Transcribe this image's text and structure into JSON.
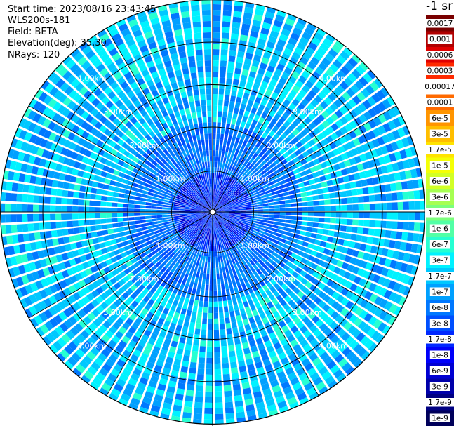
{
  "header": {
    "start_time": "Start time: 2023/08/16 23:43:45",
    "instrument": "WLS200s-181",
    "field": "Field: BETA",
    "elevation": "Elevation(deg): 35.30",
    "nrays": "NRays: 120"
  },
  "colorbar": {
    "unit_label": "-1 sr",
    "labels": [
      "0.0017",
      "0.001",
      "0.0006",
      "0.0003",
      "0.00017",
      "0.0001",
      "6e-5",
      "3e-5",
      "1.7e-5",
      "1e-5",
      "6e-6",
      "3e-6",
      "1.7e-6",
      "1e-6",
      "6e-7",
      "3e-7",
      "1.7e-7",
      "1e-7",
      "6e-8",
      "3e-8",
      "1.7e-8",
      "1e-8",
      "6e-9",
      "3e-9",
      "1.7e-9",
      "1e-9"
    ],
    "colors": [
      "#7a0000",
      "#b00000",
      "#e00000",
      "#ff2a00",
      "#ffffff",
      "#ff6a00",
      "#ff9500",
      "#ffbe00",
      "#ffe400",
      "#f4ff06",
      "#d2ff26",
      "#a6ff52",
      "#7cff7c",
      "#52ffa6",
      "#26ffd2",
      "#00f2ff",
      "#00c8ff",
      "#00a0ff",
      "#0078ff",
      "#0050ff",
      "#0028ff",
      "#0000fa",
      "#0000d2",
      "#0000aa",
      "#000082",
      "#00005a"
    ]
  },
  "chart_data": {
    "type": "heatmap",
    "projection": "polar (PPI)",
    "field": "BETA",
    "elevation_deg": 35.3,
    "n_rays": 120,
    "range_rings_km": [
      1.0,
      2.0,
      3.0,
      4.0,
      5.0
    ],
    "ring_labels": [
      "1.00km",
      "2.00km",
      "3.00km",
      "4.00km",
      "5.00km"
    ],
    "dominant_value_range": [
      "1.7e-7",
      "6e-8"
    ],
    "near_center_range": [
      "1.7e-8",
      "3e-9"
    ],
    "colorscale_log": true
  }
}
